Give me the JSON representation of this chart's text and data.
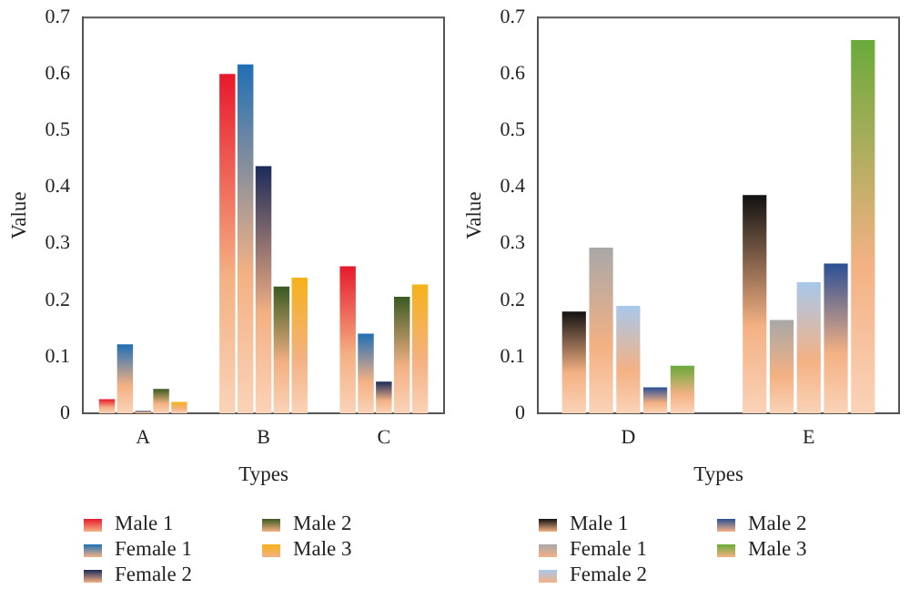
{
  "chart_data": [
    {
      "type": "bar",
      "xlabel": "Types",
      "ylabel": "Value",
      "categories": [
        "A",
        "B",
        "C"
      ],
      "ylim": [
        0,
        0.7
      ],
      "yticks": [
        0,
        0.1,
        0.2,
        0.3,
        0.4,
        0.5,
        0.6,
        0.7
      ],
      "grid": false,
      "legend": "bottom",
      "series": [
        {
          "name": "Male 1",
          "color": "#e8192c",
          "values": [
            0.025,
            0.6,
            0.26
          ]
        },
        {
          "name": "Female 1",
          "color": "#1f6fb5",
          "values": [
            0.122,
            0.617,
            0.141
          ]
        },
        {
          "name": "Female 2",
          "color": "#1c2a5a",
          "values": [
            0.004,
            0.437,
            0.056
          ]
        },
        {
          "name": "Male 2",
          "color": "#3a5a22",
          "values": [
            0.043,
            0.224,
            0.206
          ]
        },
        {
          "name": "Male 3",
          "color": "#f5b21a",
          "values": [
            0.02,
            0.24,
            0.228
          ]
        }
      ]
    },
    {
      "type": "bar",
      "xlabel": "Types",
      "ylabel": "Value",
      "categories": [
        "D",
        "E"
      ],
      "ylim": [
        0,
        0.7
      ],
      "yticks": [
        0,
        0.1,
        0.2,
        0.3,
        0.4,
        0.5,
        0.6,
        0.7
      ],
      "grid": false,
      "legend": "bottom",
      "series": [
        {
          "name": "Male 1",
          "color": "#111111",
          "values": [
            0.18,
            0.386
          ]
        },
        {
          "name": "Female 1",
          "color": "#a8a8a8",
          "values": [
            0.293,
            0.165
          ]
        },
        {
          "name": "Female 2",
          "color": "#a8c8ec",
          "values": [
            0.19,
            0.232
          ]
        },
        {
          "name": "Male 2",
          "color": "#2a4f95",
          "values": [
            0.046,
            0.265
          ]
        },
        {
          "name": "Male 3",
          "color": "#6aaa3a",
          "values": [
            0.084,
            0.66
          ]
        }
      ]
    }
  ]
}
